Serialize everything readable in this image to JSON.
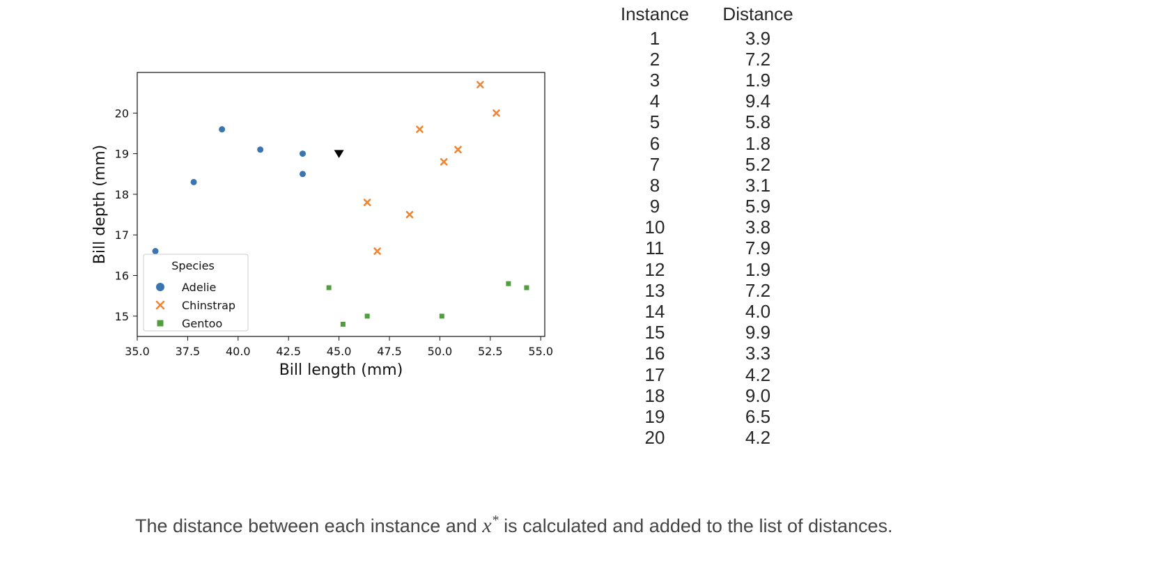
{
  "chart_data": {
    "type": "scatter",
    "xlabel": "Bill length (mm)",
    "ylabel": "Bill depth (mm)",
    "xlim": [
      35.0,
      55.2
    ],
    "ylim": [
      14.5,
      21.0
    ],
    "x_ticks": [
      "35.0",
      "37.5",
      "40.0",
      "42.5",
      "45.0",
      "47.5",
      "50.0",
      "52.5",
      "55.0"
    ],
    "y_ticks": [
      "15",
      "16",
      "17",
      "18",
      "19",
      "20"
    ],
    "grid": false,
    "legend_title": "Species",
    "legend_position": "lower-left",
    "series": [
      {
        "name": "Adelie",
        "marker": "circle",
        "color": "#3b75af",
        "points": [
          [
            35.9,
            16.6
          ],
          [
            37.8,
            18.3
          ],
          [
            39.2,
            19.6
          ],
          [
            41.1,
            19.1
          ],
          [
            43.2,
            19.0
          ],
          [
            43.2,
            18.5
          ]
        ]
      },
      {
        "name": "Chinstrap",
        "marker": "x",
        "color": "#ef8636",
        "points": [
          [
            46.4,
            17.8
          ],
          [
            46.9,
            16.6
          ],
          [
            48.5,
            17.5
          ],
          [
            49.0,
            19.6
          ],
          [
            50.2,
            18.8
          ],
          [
            50.9,
            19.1
          ],
          [
            52.0,
            20.7
          ],
          [
            52.8,
            20.0
          ]
        ]
      },
      {
        "name": "Gentoo",
        "marker": "square",
        "color": "#519e3e",
        "points": [
          [
            44.5,
            15.7
          ],
          [
            45.2,
            14.8
          ],
          [
            46.4,
            15.0
          ],
          [
            50.1,
            15.0
          ],
          [
            53.4,
            15.8
          ],
          [
            54.3,
            15.7
          ]
        ]
      }
    ],
    "query_point": {
      "marker": "triangle-down",
      "color": "#000000",
      "point": [
        45.0,
        19.0
      ]
    }
  },
  "table": {
    "headers": [
      "Instance",
      "Distance"
    ],
    "rows": [
      [
        "1",
        "3.9"
      ],
      [
        "2",
        "7.2"
      ],
      [
        "3",
        "1.9"
      ],
      [
        "4",
        "9.4"
      ],
      [
        "5",
        "5.8"
      ],
      [
        "6",
        "1.8"
      ],
      [
        "7",
        "5.2"
      ],
      [
        "8",
        "3.1"
      ],
      [
        "9",
        "5.9"
      ],
      [
        "10",
        "3.8"
      ],
      [
        "11",
        "7.9"
      ],
      [
        "12",
        "1.9"
      ],
      [
        "13",
        "7.2"
      ],
      [
        "14",
        "4.0"
      ],
      [
        "15",
        "9.9"
      ],
      [
        "16",
        "3.3"
      ],
      [
        "17",
        "4.2"
      ],
      [
        "18",
        "9.0"
      ],
      [
        "19",
        "6.5"
      ],
      [
        "20",
        "4.2"
      ]
    ]
  },
  "caption": {
    "before": "The distance between each instance and ",
    "math_symbol": "x",
    "math_superscript": "*",
    "after": " is calculated and added to the list of distances."
  }
}
